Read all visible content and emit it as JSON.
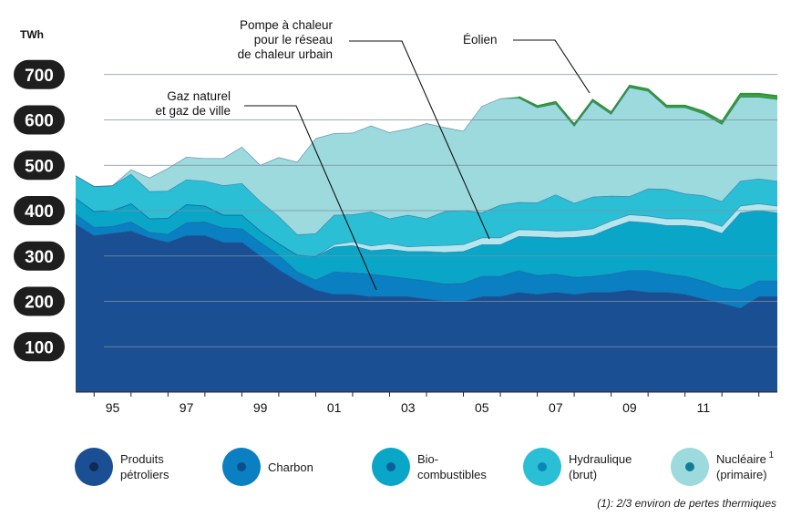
{
  "chart_data": {
    "type": "area",
    "title": "",
    "ylabel": "TWh",
    "xlabel": "",
    "ylim": [
      0,
      700
    ],
    "yticks": [
      "100",
      "200",
      "300",
      "400",
      "500",
      "600",
      "700"
    ],
    "x_tick_labels": [
      "95",
      "97",
      "99",
      "01",
      "03",
      "05",
      "07",
      "09",
      "11"
    ],
    "x": [
      1994.0,
      1994.5,
      1995.0,
      1995.5,
      1996.0,
      1996.5,
      1997.0,
      1997.5,
      1998.0,
      1998.5,
      1999.0,
      1999.5,
      2000.0,
      2000.5,
      2001.0,
      2001.5,
      2002.0,
      2002.5,
      2003.0,
      2003.5,
      2004.0,
      2004.5,
      2005.0,
      2005.5,
      2006.0,
      2006.5,
      2007.0,
      2007.5,
      2008.0,
      2008.5,
      2009.0,
      2009.5,
      2010.0,
      2010.5,
      2011.0,
      2011.5,
      2012.0,
      2012.5,
      2013.0
    ],
    "series": [
      {
        "name": "Produits pétroliers",
        "color": "#1b4f93",
        "values": [
          370,
          345,
          350,
          355,
          340,
          330,
          345,
          345,
          330,
          330,
          300,
          270,
          245,
          225,
          215,
          215,
          210,
          210,
          210,
          205,
          200,
          200,
          210,
          210,
          220,
          215,
          220,
          215,
          220,
          220,
          225,
          220,
          220,
          215,
          205,
          195,
          185,
          210,
          210
        ]
      },
      {
        "name": "Charbon",
        "color": "#0a7fc1",
        "values": [
          22,
          18,
          15,
          20,
          12,
          18,
          28,
          30,
          32,
          30,
          30,
          32,
          20,
          22,
          50,
          48,
          50,
          45,
          40,
          40,
          38,
          40,
          45,
          45,
          48,
          42,
          40,
          38,
          35,
          40,
          43,
          48,
          40,
          40,
          40,
          35,
          40,
          35,
          35
        ]
      },
      {
        "name": "Bio-combustibles",
        "color": "#0aa6c8",
        "values": [
          35,
          35,
          35,
          40,
          30,
          35,
          40,
          35,
          28,
          30,
          25,
          25,
          37,
          52,
          55,
          60,
          52,
          60,
          60,
          65,
          70,
          70,
          70,
          70,
          75,
          85,
          80,
          88,
          90,
          102,
          108,
          105,
          107,
          112,
          118,
          120,
          170,
          155,
          150
        ]
      },
      {
        "name": "Pompe à chaleur pour le réseau de chaleur urbain",
        "color": "#b5e6ed",
        "values": [
          0,
          0,
          0,
          0,
          0,
          0,
          0,
          0,
          0,
          0,
          0,
          0,
          0,
          0,
          5,
          8,
          10,
          12,
          10,
          12,
          15,
          15,
          15,
          15,
          15,
          15,
          15,
          15,
          15,
          15,
          15,
          15,
          15,
          15,
          15,
          15,
          15,
          15,
          15
        ]
      },
      {
        "name": "Hydraulique (brut)",
        "color": "#2bbfd6",
        "values": [
          50,
          55,
          55,
          65,
          60,
          60,
          55,
          55,
          65,
          70,
          65,
          60,
          45,
          50,
          65,
          60,
          75,
          55,
          70,
          60,
          75,
          75,
          55,
          72,
          60,
          60,
          80,
          60,
          70,
          55,
          40,
          60,
          65,
          55,
          55,
          55,
          55,
          55,
          55
        ]
      },
      {
        "name": "Nucléaire (primaire)",
        "color": "#9cdadd",
        "values": [
          0,
          0,
          0,
          10,
          30,
          50,
          50,
          50,
          60,
          80,
          80,
          130,
          160,
          210,
          180,
          180,
          190,
          190,
          190,
          210,
          185,
          175,
          235,
          235,
          230,
          210,
          200,
          170,
          210,
          180,
          240,
          215,
          180,
          190,
          180,
          170,
          185,
          180,
          180
        ]
      },
      {
        "name": "Éolien",
        "color": "#3aa335",
        "values": [
          0,
          0,
          0,
          0,
          0,
          0,
          0,
          0,
          0,
          0,
          0,
          0,
          0,
          0,
          0,
          0,
          0,
          0,
          0,
          0,
          0,
          0,
          0,
          0,
          3,
          4,
          5,
          5,
          5,
          5,
          5,
          5,
          5,
          5,
          6,
          7,
          8,
          8,
          8
        ]
      }
    ],
    "annotations": [
      {
        "label": "Éolien",
        "target_series": "Éolien"
      },
      {
        "label": "Pompe à chaleur\npour le réseau\nde chaleur urbain",
        "target_series": "Pompe à chaleur pour le réseau de chaleur urbain"
      },
      {
        "label": "Gaz naturel\net gaz de ville",
        "target_series": "Gaz naturel et gaz de ville"
      }
    ],
    "legend": [
      {
        "label": "Produits\npétroliers",
        "color": "#1b4f93",
        "dot": "#0e2a55"
      },
      {
        "label": "Charbon",
        "color": "#0a7fc1",
        "dot": "#0c4f8c"
      },
      {
        "label": "Bio-\ncombustibles",
        "color": "#0aa6c8",
        "dot": "#0d5f9c"
      },
      {
        "label": "Hydraulique\n(brut)",
        "color": "#2bbfd6",
        "dot": "#0a86b8"
      },
      {
        "label": "Nucléaire\n(primaire)",
        "sup": "1",
        "color": "#9cdadd",
        "dot": "#0f7d95"
      }
    ],
    "legend_placement": "bottom",
    "grid": true,
    "footnote": "(1): 2/3 environ de pertes thermiques"
  }
}
